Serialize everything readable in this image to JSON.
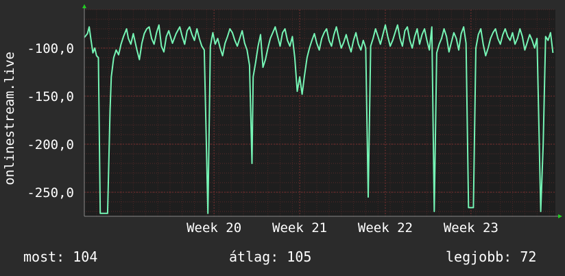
{
  "chart_data": {
    "type": "line",
    "ylabel": "onlinestream.live",
    "ylim": [
      -275,
      -60
    ],
    "y_ticks": [
      -100,
      -150,
      -200,
      -250
    ],
    "y_tick_labels": [
      "-100,0",
      "-150,0",
      "-200,0",
      "-250,0"
    ],
    "x_ticks": [
      {
        "label": "Week 20",
        "x": 10.6
      },
      {
        "label": "Week 21",
        "x": 17.6
      },
      {
        "label": "Week 22",
        "x": 24.6
      },
      {
        "label": "Week 23",
        "x": 31.6
      }
    ],
    "xlim": [
      0,
      38.5
    ],
    "grid": true,
    "colors": {
      "background": "#2b2b2b",
      "plot_background": "#1e1e1e",
      "line": "#76f5b5",
      "grid": "#cc3333",
      "arrow": "#22cc22"
    },
    "series": [
      {
        "values": [
          [
            0.0,
            -89
          ],
          [
            0.25,
            -85
          ],
          [
            0.4,
            -78
          ],
          [
            0.55,
            -92
          ],
          [
            0.7,
            -105
          ],
          [
            0.85,
            -100
          ],
          [
            1.0,
            -108
          ],
          [
            1.15,
            -110
          ],
          [
            1.3,
            -272
          ],
          [
            1.9,
            -272
          ],
          [
            2.1,
            -165
          ],
          [
            2.2,
            -130
          ],
          [
            2.4,
            -110
          ],
          [
            2.6,
            -102
          ],
          [
            2.8,
            -107
          ],
          [
            3.0,
            -96
          ],
          [
            3.2,
            -88
          ],
          [
            3.45,
            -80
          ],
          [
            3.6,
            -90
          ],
          [
            3.8,
            -96
          ],
          [
            4.0,
            -85
          ],
          [
            4.3,
            -102
          ],
          [
            4.5,
            -112
          ],
          [
            4.7,
            -95
          ],
          [
            4.9,
            -85
          ],
          [
            5.1,
            -80
          ],
          [
            5.3,
            -78
          ],
          [
            5.5,
            -90
          ],
          [
            5.7,
            -96
          ],
          [
            5.9,
            -84
          ],
          [
            6.1,
            -76
          ],
          [
            6.3,
            -98
          ],
          [
            6.5,
            -104
          ],
          [
            6.7,
            -88
          ],
          [
            6.9,
            -82
          ],
          [
            7.2,
            -95
          ],
          [
            7.5,
            -85
          ],
          [
            7.8,
            -78
          ],
          [
            8.0,
            -88
          ],
          [
            8.2,
            -96
          ],
          [
            8.4,
            -82
          ],
          [
            8.6,
            -78
          ],
          [
            8.8,
            -86
          ],
          [
            9.0,
            -92
          ],
          [
            9.2,
            -80
          ],
          [
            9.4,
            -90
          ],
          [
            9.6,
            -98
          ],
          [
            9.8,
            -102
          ],
          [
            10.1,
            -272
          ],
          [
            10.3,
            -98
          ],
          [
            10.5,
            -84
          ],
          [
            10.7,
            -96
          ],
          [
            10.9,
            -90
          ],
          [
            11.1,
            -100
          ],
          [
            11.3,
            -108
          ],
          [
            11.5,
            -95
          ],
          [
            11.7,
            -88
          ],
          [
            11.9,
            -80
          ],
          [
            12.1,
            -84
          ],
          [
            12.3,
            -92
          ],
          [
            12.5,
            -98
          ],
          [
            12.7,
            -90
          ],
          [
            12.9,
            -82
          ],
          [
            13.1,
            -95
          ],
          [
            13.3,
            -102
          ],
          [
            13.5,
            -118
          ],
          [
            13.7,
            -220
          ],
          [
            13.8,
            -130
          ],
          [
            14.0,
            -115
          ],
          [
            14.2,
            -98
          ],
          [
            14.4,
            -86
          ],
          [
            14.6,
            -120
          ],
          [
            14.8,
            -112
          ],
          [
            15.0,
            -100
          ],
          [
            15.2,
            -90
          ],
          [
            15.4,
            -84
          ],
          [
            15.6,
            -78
          ],
          [
            15.8,
            -88
          ],
          [
            16.0,
            -98
          ],
          [
            16.2,
            -84
          ],
          [
            16.4,
            -80
          ],
          [
            16.6,
            -92
          ],
          [
            16.8,
            -98
          ],
          [
            17.0,
            -88
          ],
          [
            17.2,
            -110
          ],
          [
            17.4,
            -145
          ],
          [
            17.6,
            -130
          ],
          [
            17.8,
            -148
          ],
          [
            18.0,
            -128
          ],
          [
            18.2,
            -110
          ],
          [
            18.4,
            -100
          ],
          [
            18.6,
            -92
          ],
          [
            18.8,
            -85
          ],
          [
            19.0,
            -95
          ],
          [
            19.2,
            -102
          ],
          [
            19.4,
            -90
          ],
          [
            19.6,
            -84
          ],
          [
            19.8,
            -80
          ],
          [
            20.0,
            -92
          ],
          [
            20.2,
            -98
          ],
          [
            20.4,
            -86
          ],
          [
            20.6,
            -78
          ],
          [
            20.8,
            -90
          ],
          [
            21.0,
            -100
          ],
          [
            21.2,
            -94
          ],
          [
            21.4,
            -86
          ],
          [
            21.6,
            -96
          ],
          [
            21.8,
            -104
          ],
          [
            22.0,
            -92
          ],
          [
            22.2,
            -84
          ],
          [
            22.4,
            -96
          ],
          [
            22.6,
            -102
          ],
          [
            22.8,
            -92
          ],
          [
            23.0,
            -100
          ],
          [
            23.2,
            -255
          ],
          [
            23.4,
            -98
          ],
          [
            23.6,
            -90
          ],
          [
            23.8,
            -80
          ],
          [
            24.0,
            -88
          ],
          [
            24.2,
            -96
          ],
          [
            24.4,
            -86
          ],
          [
            24.6,
            -76
          ],
          [
            24.8,
            -88
          ],
          [
            25.0,
            -98
          ],
          [
            25.2,
            -92
          ],
          [
            25.4,
            -84
          ],
          [
            25.6,
            -76
          ],
          [
            25.8,
            -90
          ],
          [
            26.0,
            -98
          ],
          [
            26.2,
            -82
          ],
          [
            26.4,
            -78
          ],
          [
            26.6,
            -92
          ],
          [
            26.8,
            -100
          ],
          [
            27.0,
            -88
          ],
          [
            27.2,
            -80
          ],
          [
            27.4,
            -96
          ],
          [
            27.6,
            -86
          ],
          [
            27.8,
            -80
          ],
          [
            28.0,
            -92
          ],
          [
            28.2,
            -102
          ],
          [
            28.4,
            -78
          ],
          [
            28.6,
            -270
          ],
          [
            28.8,
            -105
          ],
          [
            29.0,
            -96
          ],
          [
            29.2,
            -90
          ],
          [
            29.4,
            -80
          ],
          [
            29.6,
            -88
          ],
          [
            29.8,
            -104
          ],
          [
            30.0,
            -94
          ],
          [
            30.2,
            -84
          ],
          [
            30.4,
            -90
          ],
          [
            30.6,
            -102
          ],
          [
            30.8,
            -85
          ],
          [
            31.0,
            -78
          ],
          [
            31.2,
            -95
          ],
          [
            31.4,
            -266
          ],
          [
            31.8,
            -266
          ],
          [
            32.0,
            -100
          ],
          [
            32.2,
            -86
          ],
          [
            32.4,
            -80
          ],
          [
            32.6,
            -96
          ],
          [
            32.8,
            -108
          ],
          [
            33.0,
            -100
          ],
          [
            33.2,
            -90
          ],
          [
            33.4,
            -84
          ],
          [
            33.6,
            -80
          ],
          [
            33.8,
            -90
          ],
          [
            34.0,
            -96
          ],
          [
            34.2,
            -86
          ],
          [
            34.4,
            -80
          ],
          [
            34.6,
            -88
          ],
          [
            34.8,
            -92
          ],
          [
            35.0,
            -84
          ],
          [
            35.2,
            -96
          ],
          [
            35.4,
            -90
          ],
          [
            35.6,
            -80
          ],
          [
            35.8,
            -88
          ],
          [
            36.0,
            -102
          ],
          [
            36.2,
            -94
          ],
          [
            36.4,
            -86
          ],
          [
            36.6,
            -92
          ],
          [
            36.8,
            -100
          ],
          [
            37.0,
            -90
          ],
          [
            37.3,
            -270
          ],
          [
            37.5,
            -200
          ],
          [
            37.7,
            -88
          ],
          [
            37.9,
            -92
          ],
          [
            38.1,
            -84
          ],
          [
            38.3,
            -105
          ]
        ]
      }
    ]
  },
  "stats": {
    "current": "most: 104",
    "average": "átlag: 105",
    "best": "legjobb: 72"
  }
}
